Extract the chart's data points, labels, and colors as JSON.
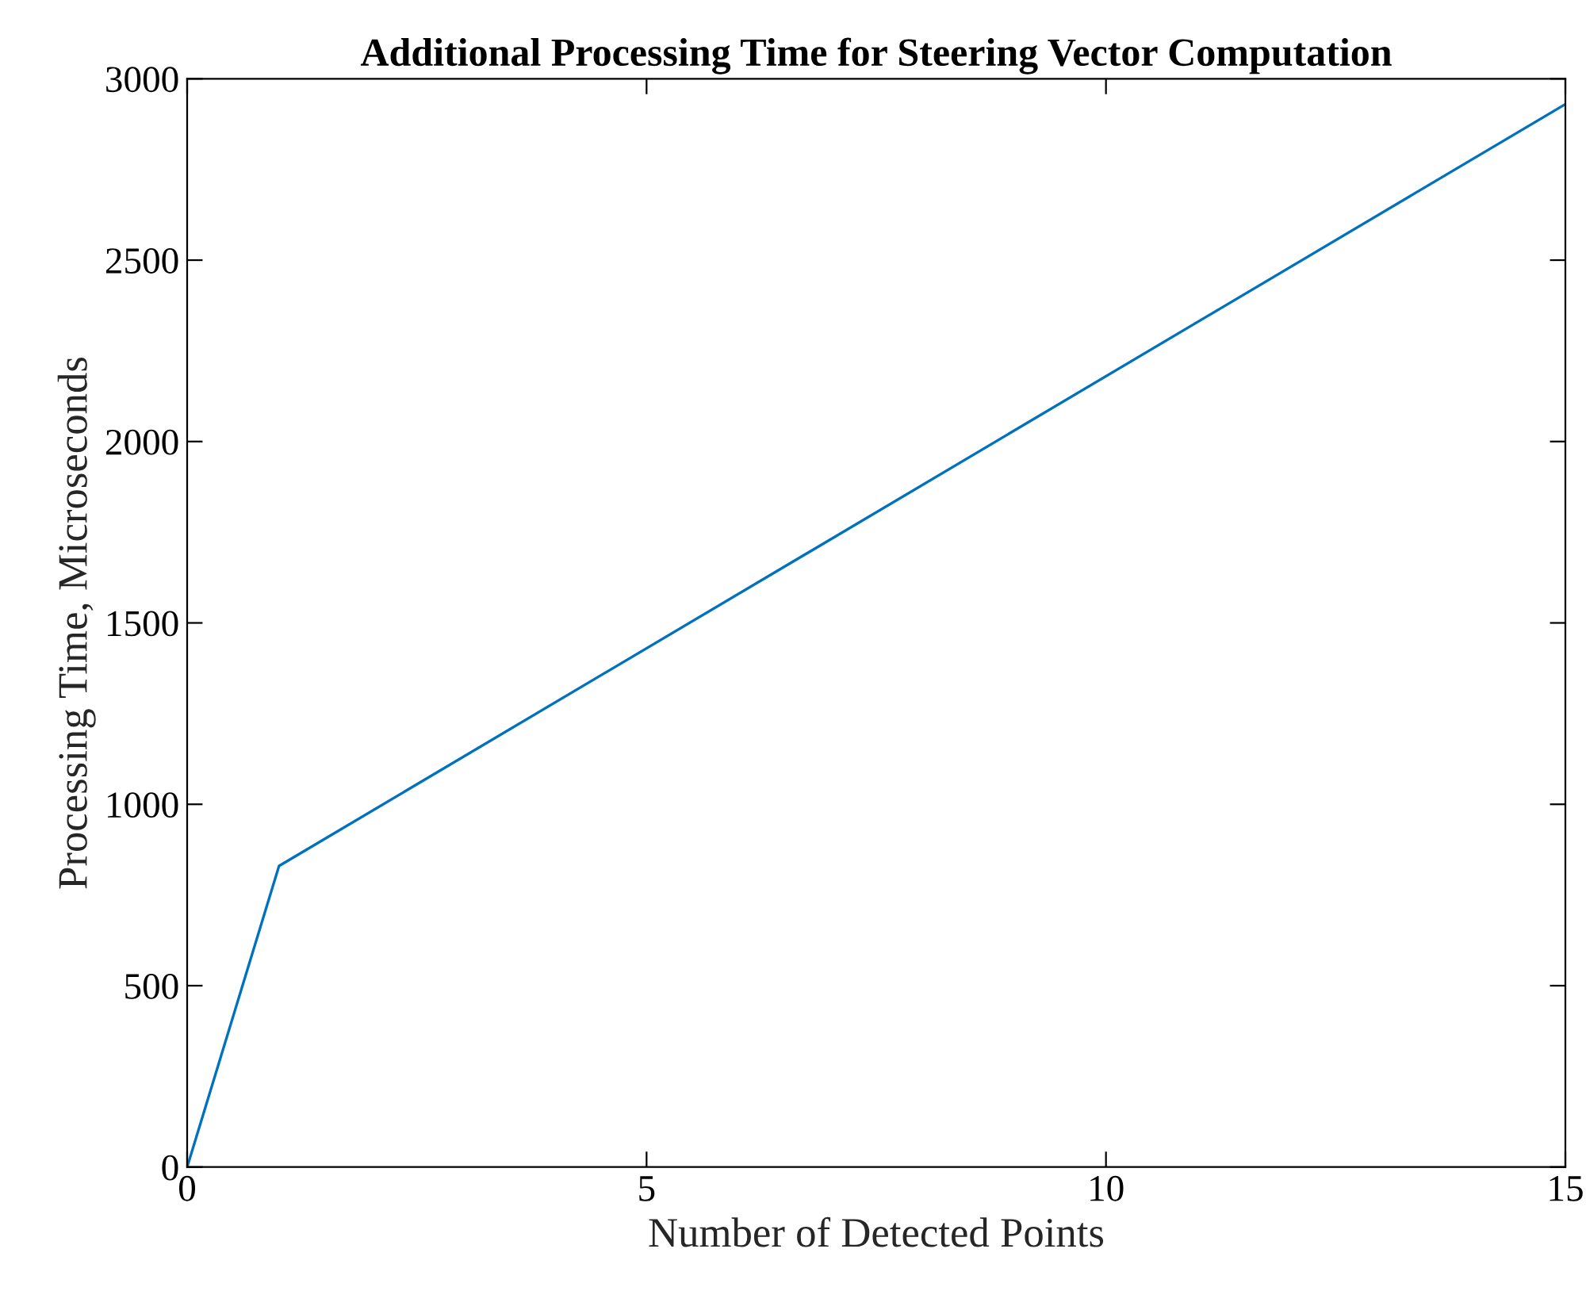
{
  "chart_data": {
    "type": "line",
    "title": "Additional Processing Time for Steering Vector Computation",
    "xlabel": "Number of Detected Points",
    "ylabel": "Processing Time, Microseconds",
    "x": [
      0,
      1,
      15
    ],
    "series": [
      {
        "color": "#0072bd",
        "values": [
          0,
          830,
          2930
        ]
      }
    ],
    "xlim": [
      0,
      15
    ],
    "xticks": [
      0,
      5,
      10,
      15
    ],
    "ylim": [
      0,
      3000
    ],
    "yticks": [
      0,
      500,
      1000,
      1500,
      2000,
      2500,
      3000
    ],
    "grid": false,
    "legend": false,
    "marker": "none",
    "line_style": "solid"
  }
}
